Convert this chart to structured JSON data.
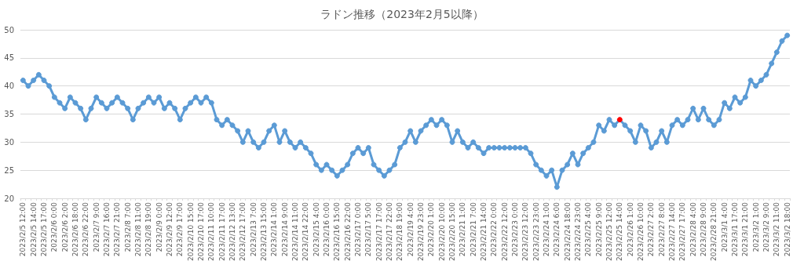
{
  "chart_data": {
    "type": "line",
    "title": "ラドン推移（2023年2月5以降）",
    "categories": [
      "2023/2/5 12:00",
      null,
      "2023/2/5 14:00",
      null,
      "2023/2/5 17:00",
      null,
      "2023/2/6 0:00",
      null,
      "2023/2/6 2:00",
      null,
      "2023/2/6 18:00",
      null,
      "2023/2/6 22:00",
      null,
      "2023/2/7 9:00",
      null,
      "2023/2/7 16:00",
      null,
      "2023/2/7 21:00",
      null,
      "2023/2/8 7:00",
      null,
      "2023/2/8 11:00",
      null,
      "2023/2/8 19:00",
      null,
      "2023/2/9 0:00",
      null,
      "2023/2/9 12:00",
      null,
      "2023/2/9 17:00",
      null,
      "2023/2/10 15:00",
      null,
      "2023/2/10 17:00",
      null,
      "2023/2/11 10:00",
      null,
      "2023/2/11 17:00",
      null,
      "2023/2/12 13:00",
      null,
      "2023/2/12 17:00",
      null,
      "2023/2/13 7:00",
      null,
      "2023/2/13 15:00",
      null,
      "2023/2/14 1:00",
      null,
      "2023/2/14 9:00",
      null,
      "2023/2/14 11:00",
      null,
      "2023/2/14 22:00",
      null,
      "2023/2/15 4:00",
      null,
      "2023/2/16 0:00",
      null,
      "2023/2/16 15:00",
      null,
      "2023/2/16 22:00",
      null,
      "2023/2/17 0:00",
      null,
      "2023/2/17 5:00",
      null,
      "2023/2/17 17:00",
      null,
      "2023/2/17 22:00",
      null,
      "2023/2/18 19:00",
      null,
      "2023/2/19 4:00",
      null,
      "2023/2/19 23:00",
      null,
      "2023/2/20 1:00",
      null,
      "2023/2/20 10:00",
      null,
      "2023/2/20 15:00",
      null,
      "2023/2/21 1:00",
      null,
      "2023/2/21 7:00",
      null,
      "2023/2/21 14:00",
      null,
      "2023/2/22 0:00",
      null,
      "2023/2/22 12:00",
      null,
      "2023/2/23 0:00",
      null,
      "2023/2/23 12:00",
      null,
      "2023/2/23 23:00",
      null,
      "2023/2/24 1:00",
      null,
      "2023/2/24 6:00",
      null,
      "2023/2/24 18:00",
      null,
      "2023/2/24 23:00",
      null,
      "2023/2/25 4:00",
      null,
      "2023/2/25 9:00",
      null,
      "2023/2/25 12:00",
      null,
      "2023/2/25 14:00",
      null,
      "2023/2/26 1:00",
      null,
      "2023/2/26 10:00",
      null,
      "2023/2/27 2:00",
      null,
      "2023/2/27 8:00",
      null,
      "2023/2/27 14:00",
      null,
      "2023/2/27 17:00",
      null,
      "2023/2/28 4:00",
      null,
      "2023/2/28 9:00",
      null,
      "2023/2/28 21:00",
      null,
      "2023/3/1 4:00",
      null,
      "2023/3/1 17:00",
      null,
      "2023/3/1 21:00",
      null,
      "2023/3/2 1:00",
      null,
      "2023/3/2 9:00",
      null,
      "2023/3/2 11:00",
      null,
      "2023/3/2 18:00"
    ],
    "series": [
      {
        "color": "#5b9bd5",
        "values": [
          41,
          40,
          41,
          42,
          41,
          40,
          38,
          37,
          36,
          38,
          37,
          36,
          34,
          36,
          38,
          37,
          36,
          37,
          38,
          37,
          36,
          34,
          36,
          37,
          38,
          37,
          38,
          36,
          37,
          36,
          34,
          36,
          37,
          38,
          37,
          38,
          37,
          34,
          33,
          34,
          33,
          32,
          30,
          32,
          30,
          29,
          30,
          32,
          33,
          30,
          32,
          30,
          29,
          30,
          29,
          28,
          26,
          25,
          26,
          25,
          24,
          25,
          26,
          28,
          29,
          28,
          29,
          26,
          25,
          24,
          25,
          26,
          29,
          30,
          32,
          30,
          32,
          33,
          34,
          33,
          34,
          33,
          30,
          32,
          30,
          29,
          30,
          29,
          28,
          29,
          29,
          29,
          29,
          29,
          29,
          29,
          29,
          28,
          26,
          25,
          24,
          25,
          22,
          25,
          26,
          28,
          26,
          28,
          29,
          30,
          33,
          32,
          34,
          33,
          34,
          33,
          32,
          30,
          33,
          32,
          29,
          30,
          32,
          30,
          33,
          34,
          33,
          34,
          36,
          34,
          36,
          34,
          33,
          34,
          37,
          36,
          38,
          37,
          38,
          41,
          40,
          41,
          42,
          44,
          46,
          48,
          49
        ],
        "colors": [
          "#5b9bd5",
          "#5b9bd5",
          "#5b9bd5",
          "#5b9bd5",
          "#5b9bd5",
          "#5b9bd5",
          "#5b9bd5",
          "#5b9bd5",
          "#5b9bd5",
          "#5b9bd5",
          "#5b9bd5",
          "#5b9bd5",
          "#5b9bd5",
          "#5b9bd5",
          "#5b9bd5",
          "#5b9bd5",
          "#5b9bd5",
          "#5b9bd5",
          "#5b9bd5",
          "#5b9bd5",
          "#5b9bd5",
          "#5b9bd5",
          "#5b9bd5",
          "#5b9bd5",
          "#5b9bd5",
          "#5b9bd5",
          "#5b9bd5",
          "#5b9bd5",
          "#5b9bd5",
          "#5b9bd5",
          "#5b9bd5",
          "#5b9bd5",
          "#5b9bd5",
          "#5b9bd5",
          "#5b9bd5",
          "#5b9bd5",
          "#5b9bd5",
          "#5b9bd5",
          "#5b9bd5",
          "#5b9bd5",
          "#5b9bd5",
          "#5b9bd5",
          "#5b9bd5",
          "#5b9bd5",
          "#5b9bd5",
          "#5b9bd5",
          "#5b9bd5",
          "#5b9bd5",
          "#5b9bd5",
          "#5b9bd5",
          "#5b9bd5",
          "#5b9bd5",
          "#5b9bd5",
          "#5b9bd5",
          "#5b9bd5",
          "#5b9bd5",
          "#5b9bd5",
          "#5b9bd5",
          "#5b9bd5",
          "#5b9bd5",
          "#5b9bd5",
          "#5b9bd5",
          "#5b9bd5",
          "#5b9bd5",
          "#5b9bd5",
          "#5b9bd5",
          "#5b9bd5",
          "#5b9bd5",
          "#5b9bd5",
          "#5b9bd5",
          "#5b9bd5",
          "#5b9bd5",
          "#5b9bd5",
          "#5b9bd5",
          "#5b9bd5",
          "#5b9bd5",
          "#5b9bd5",
          "#5b9bd5",
          "#5b9bd5",
          "#5b9bd5",
          "#5b9bd5",
          "#5b9bd5",
          "#5b9bd5",
          "#5b9bd5",
          "#5b9bd5",
          "#5b9bd5",
          "#5b9bd5",
          "#5b9bd5",
          "#5b9bd5",
          "#5b9bd5",
          "#5b9bd5",
          "#5b9bd5",
          "#5b9bd5",
          "#5b9bd5",
          "#5b9bd5",
          "#5b9bd5",
          "#5b9bd5",
          "#5b9bd5",
          "#5b9bd5",
          "#5b9bd5",
          "#5b9bd5",
          "#5b9bd5",
          "#5b9bd5",
          "#5b9bd5",
          "#5b9bd5",
          "#5b9bd5",
          "#5b9bd5",
          "#5b9bd5",
          "#5b9bd5",
          "#5b9bd5",
          "#5b9bd5",
          "#5b9bd5",
          "#5b9bd5",
          "#5b9bd5",
          "#ff0000",
          "#5b9bd5",
          "#5b9bd5",
          "#5b9bd5",
          "#5b9bd5",
          "#5b9bd5",
          "#5b9bd5",
          "#5b9bd5",
          "#5b9bd5",
          "#5b9bd5",
          "#5b9bd5",
          "#5b9bd5",
          "#5b9bd5",
          "#5b9bd5",
          "#5b9bd5",
          "#5b9bd5",
          "#5b9bd5",
          "#5b9bd5",
          "#5b9bd5",
          "#5b9bd5",
          "#5b9bd5",
          "#5b9bd5",
          "#5b9bd5",
          "#5b9bd5",
          "#5b9bd5",
          "#5b9bd5",
          "#5b9bd5",
          "#5b9bd5",
          "#5b9bd5",
          "#5b9bd5",
          "#5b9bd5",
          "#5b9bd5",
          "#5b9bd5"
        ]
      }
    ],
    "ylim": [
      20,
      50
    ],
    "yticks": [
      20,
      25,
      30,
      35,
      40,
      45,
      50
    ],
    "grid": "y",
    "marker": "circle",
    "line_style": "solid"
  }
}
